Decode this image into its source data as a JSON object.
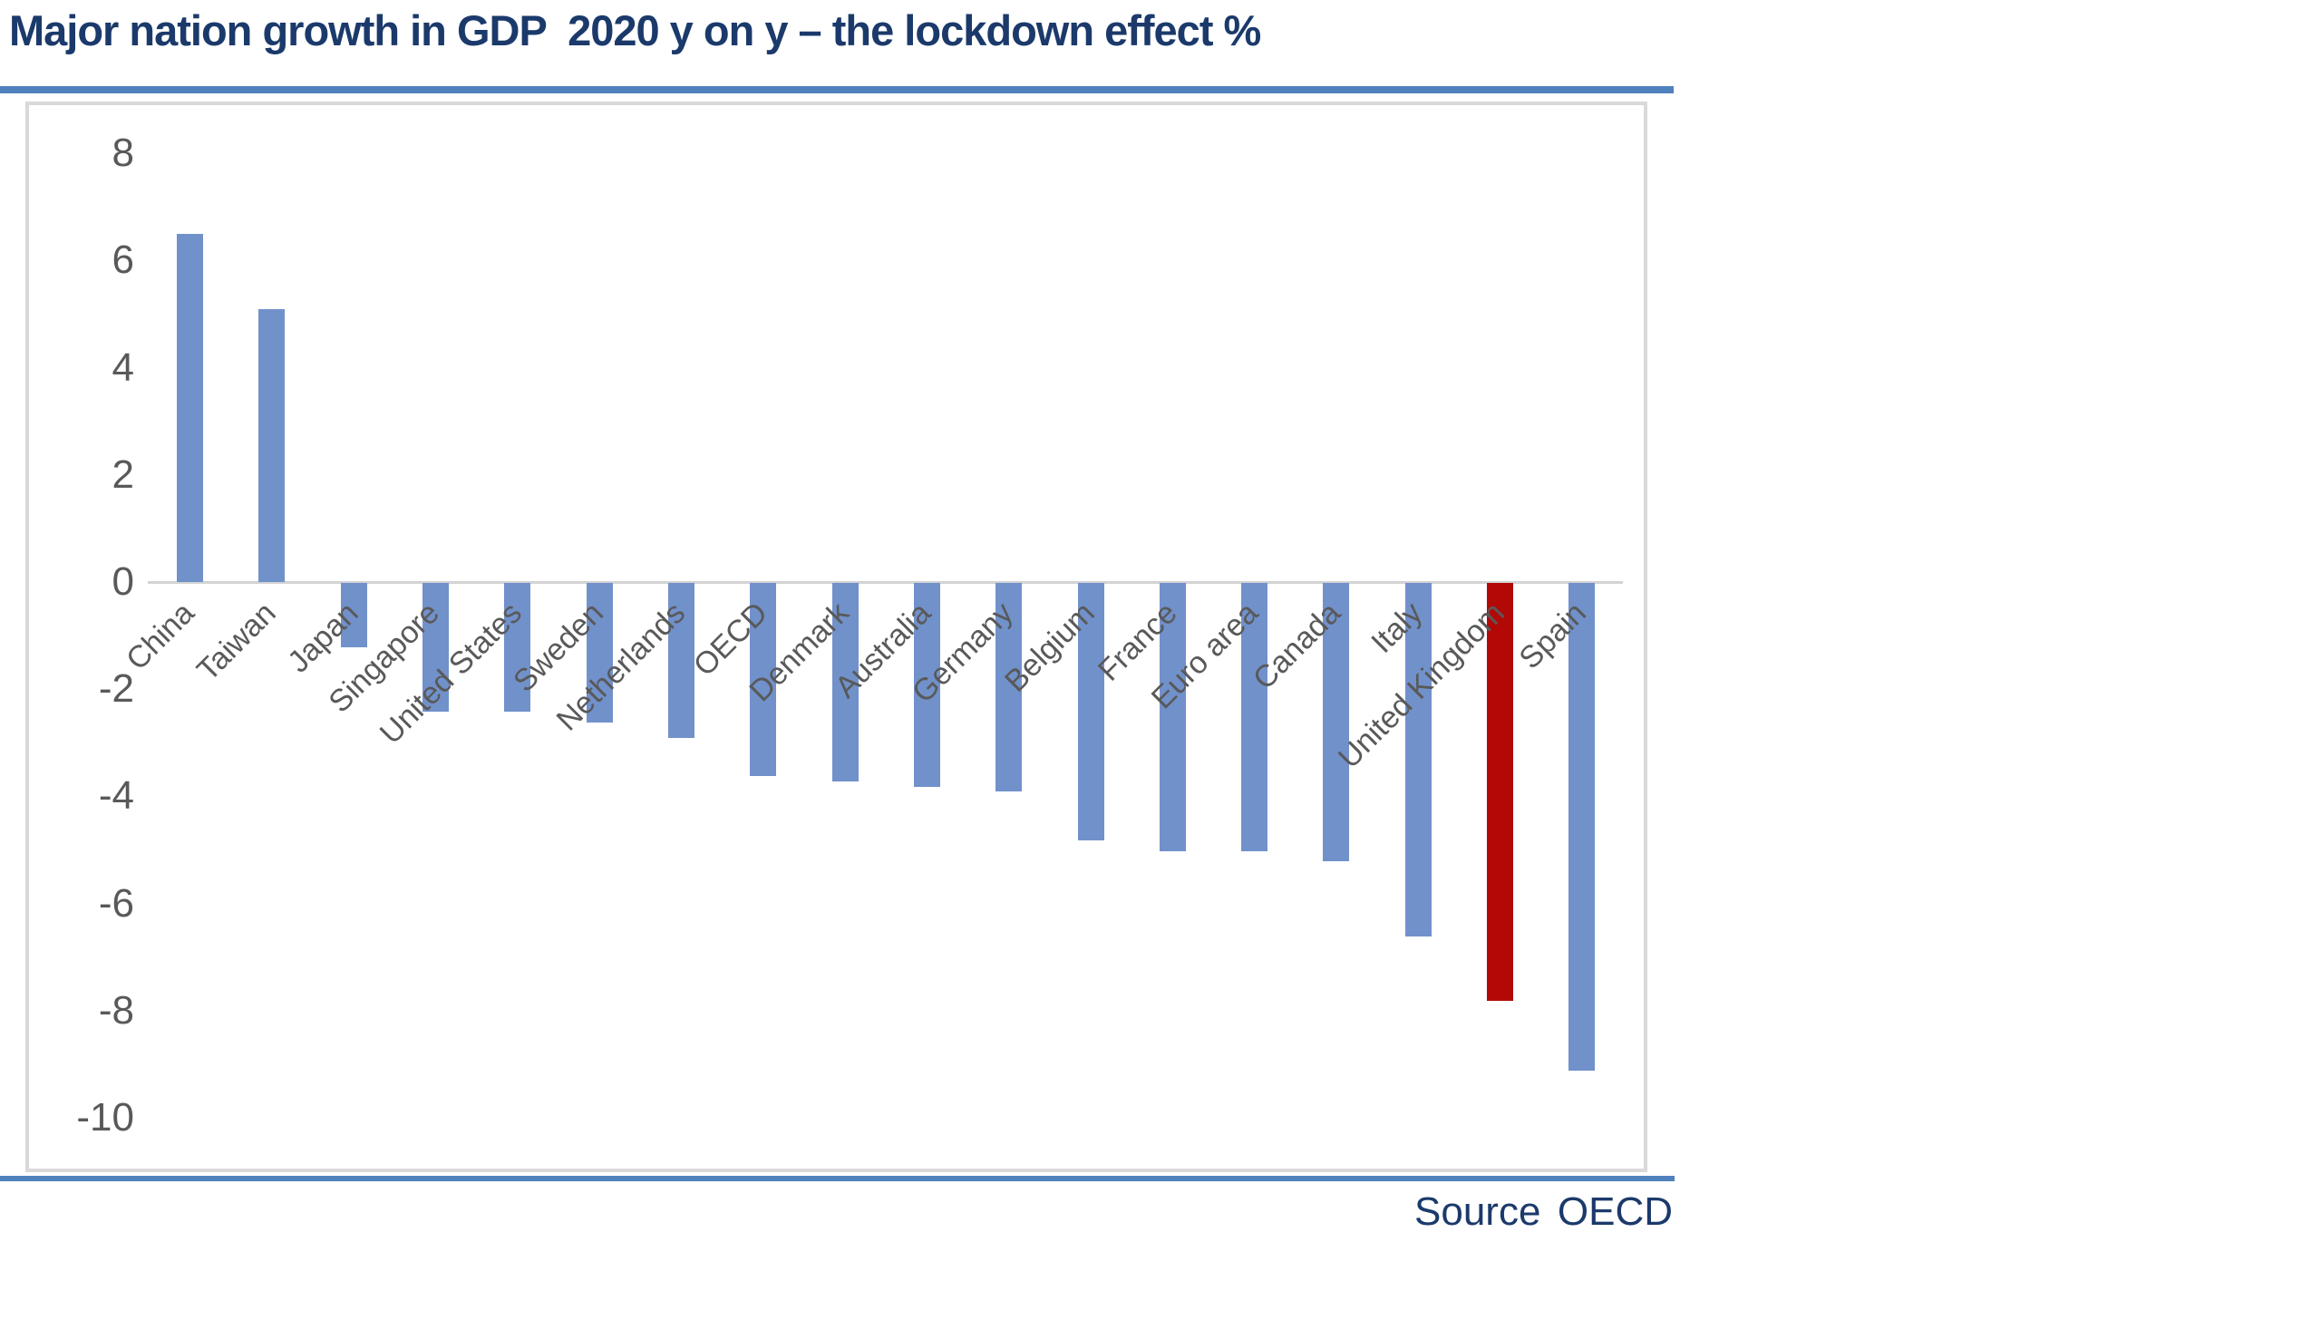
{
  "title": "Major nation growth in GDP  2020 y on y – the lockdown effect %",
  "source": {
    "prefix": "Source",
    "value": "OECD"
  },
  "colors": {
    "bar": "#7191cb",
    "highlight_bar": "#b20907",
    "title_text": "#1b3a6b",
    "rule_blue": "#4f81bd",
    "axis_text": "#595959",
    "zero_line": "#d3d3d3",
    "frame_border": "#d9d9d9"
  },
  "chart_data": {
    "type": "bar",
    "title": "Major nation growth in GDP  2020 y on y – the lockdown effect %",
    "unit": "%",
    "categories": [
      "China",
      "Taiwan",
      "Japan",
      "Singapore",
      "United States",
      "Sweden",
      "Netherlands",
      "OECD",
      "Denmark",
      "Australia",
      "Germany",
      "Belgium",
      "France",
      "Euro area",
      "Canada",
      "Italy",
      "United Kingdom",
      "Spain"
    ],
    "values": [
      6.5,
      5.1,
      -1.2,
      -2.4,
      -2.4,
      -2.6,
      -2.9,
      -3.6,
      -3.7,
      -3.8,
      -3.9,
      -4.8,
      -5.0,
      -5.0,
      -5.2,
      -6.6,
      -7.8,
      -9.1
    ],
    "highlight_category": "United Kingdom",
    "yticks": [
      8,
      6,
      4,
      2,
      0,
      -2,
      -4,
      -6,
      -8,
      -10
    ],
    "ylim": [
      -10,
      8
    ],
    "xlabel": "",
    "ylabel": "",
    "grid": false,
    "legend": false,
    "source": "OECD"
  }
}
